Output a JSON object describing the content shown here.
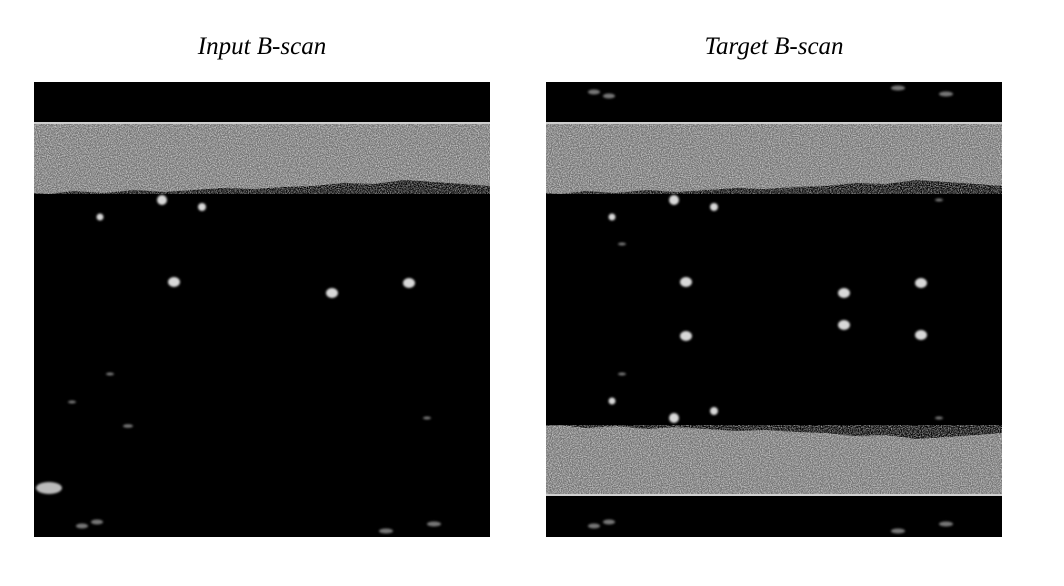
{
  "panels": [
    {
      "title": "Input B-scan"
    },
    {
      "title": "Target B-scan"
    }
  ]
}
